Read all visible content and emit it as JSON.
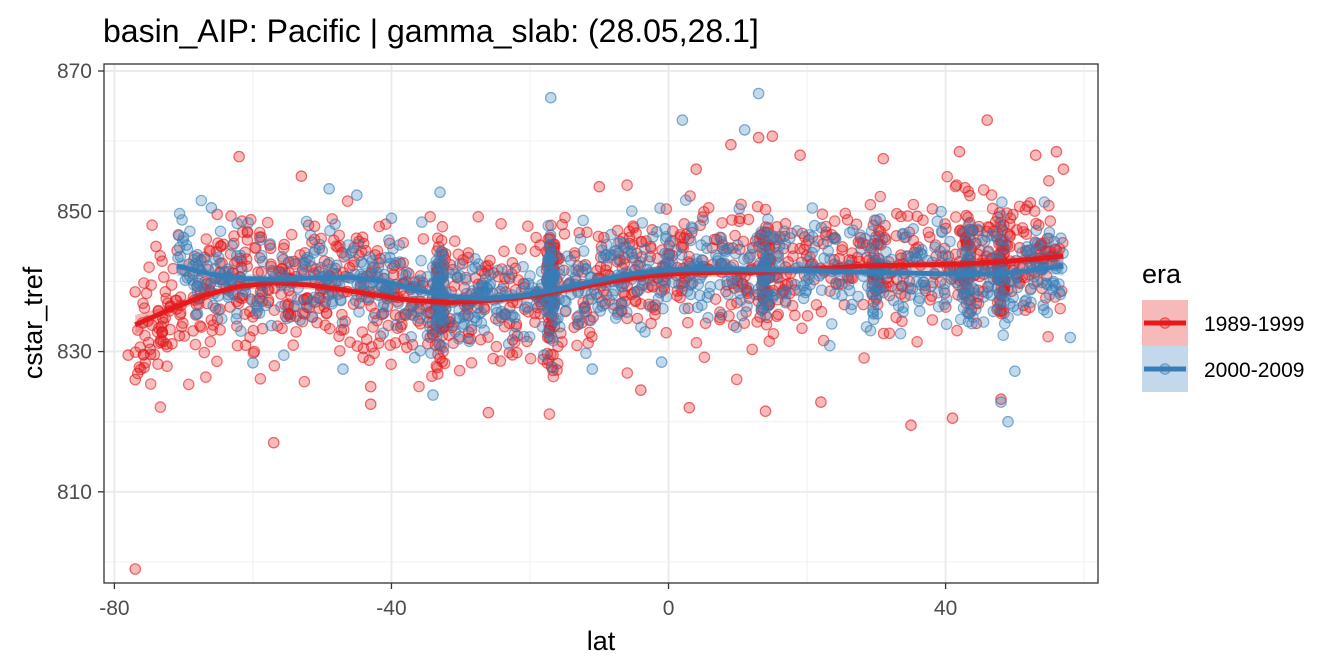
{
  "chart_data": {
    "type": "scatter",
    "title": "basin_AIP: Pacific | gamma_slab:  (28.05,28.1]",
    "xlabel": "lat",
    "ylabel": "cstar_tref",
    "xlim": [
      -81.5,
      62
    ],
    "ylim": [
      797,
      871
    ],
    "x_ticks": [
      -80,
      -40,
      0,
      40
    ],
    "x_tick_labels": [
      "-80",
      "-40",
      "0",
      "40"
    ],
    "y_ticks": [
      810,
      830,
      850,
      870
    ],
    "y_tick_labels": [
      "810",
      "830",
      "850",
      "870"
    ],
    "grid": true,
    "legend": {
      "title": "era",
      "position": "right",
      "entries": [
        "1989-1999",
        "2000-2009"
      ]
    },
    "series": [
      {
        "name": "1989-1999",
        "color": "#e41a1c",
        "smooth": {
          "x": [
            -77,
            -72,
            -67,
            -62,
            -57,
            -52,
            -47,
            -42,
            -37,
            -32,
            -27,
            -22,
            -17,
            -12,
            -7,
            -2,
            3,
            8,
            13,
            18,
            23,
            28,
            33,
            38,
            43,
            48,
            53,
            57
          ],
          "y": [
            833.8,
            836.0,
            838.0,
            839.3,
            839.8,
            839.5,
            838.8,
            838.0,
            837.3,
            837.0,
            837.2,
            837.6,
            838.4,
            839.3,
            840.2,
            840.9,
            841.2,
            841.3,
            841.3,
            841.6,
            841.9,
            842.2,
            842.3,
            842.4,
            842.5,
            842.8,
            843.2,
            843.6
          ]
        },
        "points": [
          {
            "x": -77,
            "y": 799
          },
          {
            "x": -57,
            "y": 817
          },
          {
            "x": -62,
            "y": 857.8
          },
          {
            "x": -53,
            "y": 855
          },
          {
            "x": -43,
            "y": 825
          },
          {
            "x": -43,
            "y": 822.5
          },
          {
            "x": -26,
            "y": 821.3
          },
          {
            "x": -10,
            "y": 853.5
          },
          {
            "x": 4,
            "y": 856
          },
          {
            "x": 9,
            "y": 859.5
          },
          {
            "x": 13,
            "y": 860.5
          },
          {
            "x": 15,
            "y": 860.7
          },
          {
            "x": 19,
            "y": 858
          },
          {
            "x": 31,
            "y": 857.5
          },
          {
            "x": 42,
            "y": 858.5
          },
          {
            "x": 46,
            "y": 863
          },
          {
            "x": 53,
            "y": 858
          },
          {
            "x": 56,
            "y": 858.5
          },
          {
            "x": 57,
            "y": 856
          },
          {
            "x": -4,
            "y": 824.5
          },
          {
            "x": 3,
            "y": 822
          },
          {
            "x": 14,
            "y": 821.5
          },
          {
            "x": 22,
            "y": 822.8
          },
          {
            "x": 35,
            "y": 819.5
          },
          {
            "x": 41,
            "y": 820.5
          },
          {
            "x": 48,
            "y": 823.2
          },
          {
            "x": -78,
            "y": 829.5
          },
          {
            "x": -77,
            "y": 826
          },
          {
            "x": -77,
            "y": 838.5
          },
          {
            "x": -74,
            "y": 845
          }
        ]
      },
      {
        "name": "2000-2009",
        "color": "#377eb8",
        "smooth": {
          "x": [
            -71,
            -66,
            -61,
            -56,
            -51,
            -46,
            -41,
            -36,
            -31,
            -26,
            -21,
            -16,
            -11,
            -6,
            -1,
            4,
            9,
            14,
            19,
            24,
            29,
            34,
            39,
            44,
            49,
            54,
            57
          ],
          "y": [
            842.2,
            841.0,
            840.4,
            840.3,
            840.5,
            840.6,
            840.0,
            838.7,
            837.8,
            837.6,
            838.0,
            838.9,
            840.0,
            841.0,
            841.6,
            841.8,
            841.8,
            841.7,
            841.6,
            841.4,
            841.3,
            841.2,
            841.1,
            841.0,
            841.2,
            841.8,
            842.2
          ]
        },
        "points": [
          {
            "x": 13,
            "y": 866.8
          },
          {
            "x": -17,
            "y": 866.2
          },
          {
            "x": 2,
            "y": 863
          },
          {
            "x": 11,
            "y": 861.6
          },
          {
            "x": -49,
            "y": 853.2
          },
          {
            "x": -33,
            "y": 852.7
          },
          {
            "x": -45,
            "y": 852.3
          },
          {
            "x": -66,
            "y": 850.5
          },
          {
            "x": -40,
            "y": 849
          },
          {
            "x": 49,
            "y": 820
          },
          {
            "x": -34,
            "y": 823.8
          },
          {
            "x": -60,
            "y": 828.4
          },
          {
            "x": -47,
            "y": 827.5
          },
          {
            "x": -18,
            "y": 829.5
          },
          {
            "x": -11,
            "y": 827.5
          },
          {
            "x": -1,
            "y": 828.5
          },
          {
            "x": 58,
            "y": 832
          },
          {
            "x": 48,
            "y": 822.8
          },
          {
            "x": 50,
            "y": 827.2
          }
        ]
      }
    ]
  }
}
